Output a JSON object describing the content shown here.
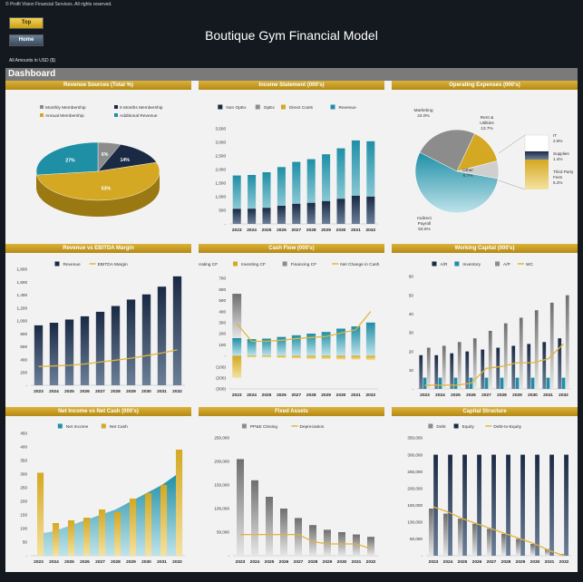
{
  "header": {
    "copyright": "© Profit Vision Financial Services. All rights reserved.",
    "top_label": "Top",
    "home_label": "Home",
    "title": "Boutique Gym Financial Model",
    "amounts": "All Amounts in  USD ($)",
    "dashboard_label": "Dashboard"
  },
  "colors": {
    "gold": "#d4a822",
    "navy": "#1b2a44",
    "teal": "#1f8fa6",
    "gray": "#8c8c8c",
    "line_gold": "#e0b43c",
    "panel_bg": "#f2f2f2"
  },
  "chart_data": [
    {
      "id": "revenue-sources",
      "type": "pie",
      "title": "Revenue Sources (Total %)",
      "legend": [
        "Monthly Membership",
        "6 Months Membership",
        "Annual Membership",
        "Additional Revenue"
      ],
      "labels": [
        "Monthly Membership",
        "6 Months Membership",
        "Annual Membership",
        "Additional Revenue"
      ],
      "values": [
        6,
        14,
        53,
        27
      ],
      "value_labels": [
        "6%",
        "14%",
        "53%",
        "27%"
      ],
      "colors": [
        "#8c8c8c",
        "#1b2a44",
        "#d4a822",
        "#1f8fa6"
      ]
    },
    {
      "id": "income-statement",
      "type": "bar",
      "title": "Income Statement (000's)",
      "legend": [
        "Non OpEx",
        "OpEx",
        "Direct Costs",
        "Revenue"
      ],
      "categories": [
        "2023",
        "2024",
        "2025",
        "2026",
        "2027",
        "2028",
        "2029",
        "2030",
        "2031",
        "2032"
      ],
      "series": [
        {
          "name": "Non OpEx",
          "values": [
            100,
            100,
            110,
            110,
            120,
            120,
            130,
            130,
            140,
            150
          ]
        },
        {
          "name": "OpEx",
          "values": [
            450,
            460,
            480,
            500,
            520,
            540,
            570,
            600,
            630,
            660
          ]
        },
        {
          "name": "Direct Costs",
          "values": [
            1230,
            1240,
            1310,
            1480,
            1640,
            1720,
            1860,
            2050,
            2300,
            2230
          ]
        },
        {
          "name": "Revenue",
          "values": [
            1780,
            1800,
            1900,
            2090,
            2280,
            2380,
            2560,
            2780,
            3070,
            3040
          ]
        }
      ],
      "yticks": [
        "-",
        "500",
        "1,000",
        "1,500",
        "2,000",
        "2,500",
        "3,000",
        "3,500"
      ],
      "ylim": [
        0,
        3500
      ]
    },
    {
      "id": "operating-expenses",
      "type": "pie",
      "title": "Operating Expenses (000's)",
      "labels": [
        "Marketing\n24.0%",
        "Rent &\nUtilities\n13.7%",
        "Other\n6.7%",
        "Indirect\nPayroll\n53.6%"
      ],
      "values": [
        24.0,
        13.7,
        6.7,
        53.6
      ],
      "sub_labels": [
        "IT\n2.8%",
        "Supplies\n1.4%",
        "Third Party\nFees\n5.2%"
      ],
      "colors": [
        "#8c8c8c",
        "#d4a822",
        "#cfcfcf",
        "#1f8fa6"
      ]
    },
    {
      "id": "revenue-ebitda",
      "type": "bar",
      "title": "Revenue vs EBITDA Margin",
      "legend": [
        "Revenue",
        "EBITDA Margin"
      ],
      "categories": [
        "2023",
        "2024",
        "2025",
        "2026",
        "2027",
        "2028",
        "2029",
        "2030",
        "2031",
        "2032"
      ],
      "series": [
        {
          "name": "Revenue",
          "values": [
            930,
            970,
            1020,
            1070,
            1140,
            1230,
            1330,
            1410,
            1530,
            1690
          ]
        },
        {
          "name": "EBITDA Margin",
          "values": [
            290,
            300,
            310,
            330,
            360,
            390,
            420,
            460,
            500,
            550
          ]
        }
      ],
      "yticks": [
        "-",
        "200",
        "400",
        "600",
        "800",
        "1,000",
        "1,200",
        "1,400",
        "1,600",
        "1,800"
      ],
      "ylim": [
        0,
        1800
      ]
    },
    {
      "id": "cash-flow",
      "type": "bar",
      "title": "Cash Flow (000's)",
      "legend": [
        "Operating CF",
        "Investing CF",
        "Financing CF",
        "Net Change in Cash"
      ],
      "categories": [
        "2023",
        "2024",
        "2025",
        "2026",
        "2027",
        "2028",
        "2029",
        "2030",
        "2031",
        "2032"
      ],
      "series": [
        {
          "name": "Operating CF",
          "values": [
            160,
            150,
            155,
            170,
            185,
            200,
            215,
            245,
            265,
            300
          ]
        },
        {
          "name": "Investing CF",
          "values": [
            -200,
            -15,
            -15,
            -20,
            -25,
            -30,
            -30,
            -35,
            -35,
            -40
          ]
        },
        {
          "name": "Financing CF",
          "values": [
            400,
            0,
            0,
            0,
            0,
            0,
            0,
            0,
            0,
            0
          ]
        },
        {
          "name": "Net Change in Cash",
          "values": [
            290,
            130,
            130,
            140,
            155,
            165,
            175,
            205,
            235,
            400
          ]
        }
      ],
      "yticks": [
        "(300)",
        "(200)",
        "(100)",
        "-",
        "100",
        "200",
        "300",
        "400",
        "500",
        "600",
        "700"
      ],
      "ylim": [
        -300,
        700
      ]
    },
    {
      "id": "working-capital",
      "type": "bar",
      "title": "Working Capital (000's)",
      "legend": [
        "A/R",
        "Inventory",
        "A/P",
        "WC"
      ],
      "categories": [
        "2023",
        "2024",
        "2025",
        "2026",
        "2027",
        "2028",
        "2029",
        "2030",
        "2031",
        "2032"
      ],
      "series": [
        {
          "name": "A/R",
          "values": [
            18,
            18,
            19,
            20,
            21,
            22,
            23,
            24,
            25,
            27
          ]
        },
        {
          "name": "Inventory",
          "values": [
            6,
            6,
            6,
            6,
            6,
            6,
            6,
            6,
            6,
            6
          ]
        },
        {
          "name": "A/P",
          "values": [
            22,
            23,
            25,
            27,
            31,
            35,
            38,
            42,
            46,
            50
          ]
        },
        {
          "name": "WC",
          "values": [
            2,
            2,
            2,
            3,
            11,
            12,
            14,
            14,
            16,
            24
          ]
        }
      ],
      "yticks": [
        "-",
        "10",
        "20",
        "30",
        "40",
        "50",
        "60"
      ],
      "ylim": [
        0,
        60
      ]
    },
    {
      "id": "net-income-cash",
      "type": "bar",
      "title": "Net Income vs Net Cash (000's)",
      "legend": [
        "Net Income",
        "Net Cash"
      ],
      "categories": [
        "2023",
        "2024",
        "2025",
        "2026",
        "2027",
        "2028",
        "2029",
        "2030",
        "2031",
        "2032"
      ],
      "series": [
        {
          "name": "Net Income",
          "values": [
            80,
            90,
            110,
            130,
            150,
            170,
            200,
            230,
            260,
            300
          ]
        },
        {
          "name": "Net Cash",
          "values": [
            305,
            120,
            130,
            140,
            170,
            160,
            210,
            230,
            260,
            390
          ]
        }
      ],
      "yticks": [
        "-",
        "50",
        "100",
        "150",
        "200",
        "250",
        "300",
        "350",
        "400",
        "450"
      ],
      "ylim": [
        0,
        450
      ]
    },
    {
      "id": "fixed-assets",
      "type": "bar",
      "title": "Fixed Assets",
      "legend": [
        "PP&E Closing",
        "Depreciation"
      ],
      "categories": [
        "2023",
        "2024",
        "2025",
        "2026",
        "2027",
        "2028",
        "2029",
        "2030",
        "2031",
        "2032"
      ],
      "series": [
        {
          "name": "PP&E Closing",
          "values": [
            205000,
            160000,
            125000,
            100000,
            80000,
            65000,
            55000,
            50000,
            45000,
            40000
          ]
        },
        {
          "name": "Depreciation",
          "values": [
            45000,
            45000,
            45000,
            45000,
            45000,
            30000,
            25000,
            25000,
            25000,
            15000
          ]
        }
      ],
      "yticks": [
        "-",
        "50,000",
        "100,000",
        "150,000",
        "200,000",
        "250,000"
      ],
      "ylim": [
        0,
        250000
      ]
    },
    {
      "id": "capital-structure",
      "type": "bar",
      "title": "Capital Structure",
      "legend": [
        "Debt",
        "Equity",
        "Debt-to-Equity"
      ],
      "categories": [
        "2023",
        "2024",
        "2025",
        "2026",
        "2027",
        "2028",
        "2029",
        "2030",
        "2031",
        "2032"
      ],
      "series": [
        {
          "name": "Debt",
          "values": [
            140000,
            125000,
            110000,
            95000,
            80000,
            65000,
            50000,
            35000,
            20000,
            5000
          ]
        },
        {
          "name": "Equity",
          "values": [
            300000,
            300000,
            300000,
            300000,
            300000,
            300000,
            300000,
            300000,
            300000,
            300000
          ]
        },
        {
          "name": "Debt-to-Equity",
          "values": [
            145000,
            130000,
            110000,
            95000,
            80000,
            65000,
            50000,
            35000,
            15000,
            0
          ]
        }
      ],
      "yticks": [
        "-",
        "50,000",
        "100,000",
        "150,000",
        "200,000",
        "250,000",
        "300,000",
        "350,000"
      ],
      "ylim": [
        0,
        350000
      ]
    }
  ]
}
